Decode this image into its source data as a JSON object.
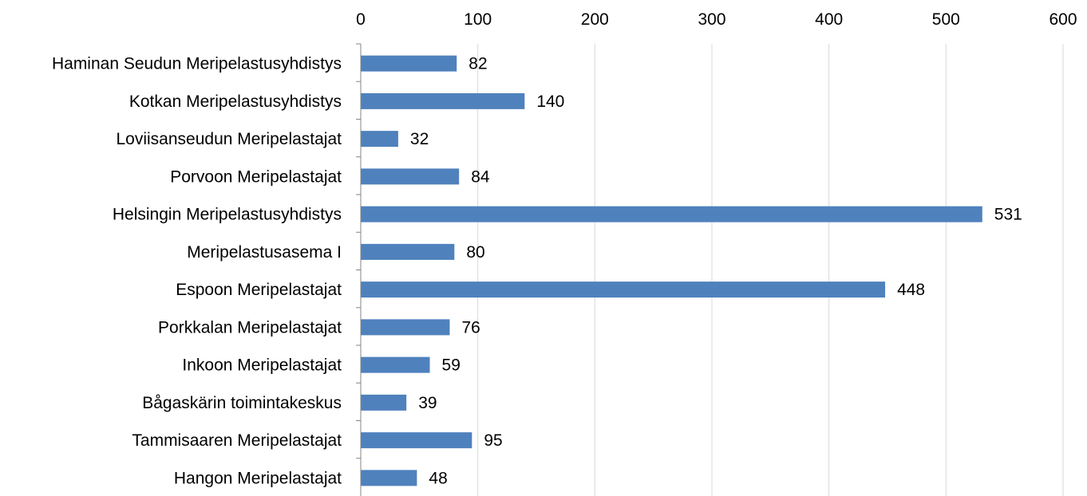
{
  "chart_data": {
    "type": "bar",
    "orientation": "horizontal",
    "title": "",
    "xlabel": "",
    "ylabel": "",
    "categories": [
      "Haminan Seudun Meripelastusyhdistys",
      "Kotkan Meripelastusyhdistys",
      "Loviisanseudun Meripelastajat",
      "Porvoon Meripelastajat",
      "Helsingin Meripelastusyhdistys",
      "Meripelastusasema I",
      "Espoon Meripelastajat",
      "Porkkalan Meripelastajat",
      "Inkoon Meripelastajat",
      "Bågaskärin toimintakeskus",
      "Tammisaaren Meripelastajat",
      "Hangon Meripelastajat"
    ],
    "values": [
      82,
      140,
      32,
      84,
      531,
      80,
      448,
      76,
      59,
      39,
      95,
      48
    ],
    "xlim": [
      0,
      600
    ],
    "ticks": [
      0,
      100,
      200,
      300,
      400,
      500,
      600
    ],
    "axis_position": "top",
    "grid": true,
    "legend": "none",
    "bar_color": "#4f81bd"
  }
}
